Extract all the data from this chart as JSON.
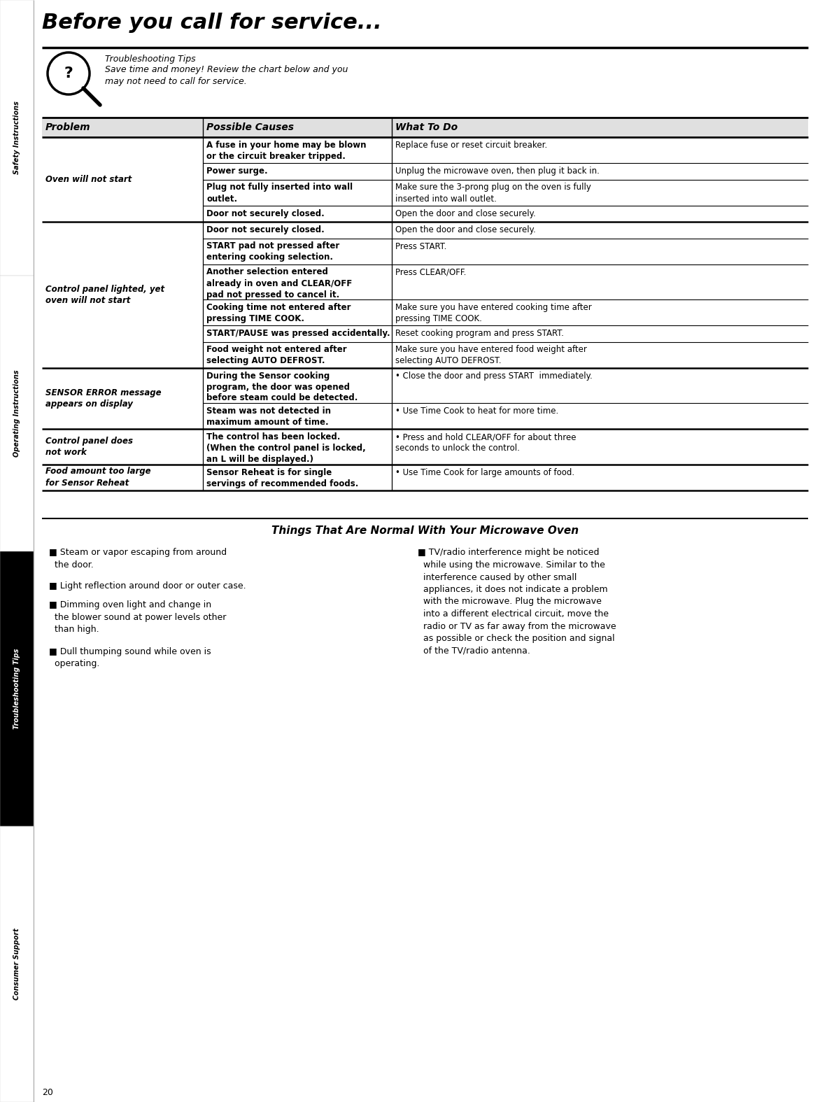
{
  "page_bg": "#ffffff",
  "title": "Before you call for service...",
  "tip_title": "Troubleshooting Tips",
  "tip_body": "Save time and money! Review the chart below and you\nmay not need to call for service.",
  "col_headers": [
    "Problem",
    "Possible Causes",
    "What To Do"
  ],
  "sidebar_labels": [
    "Safety Instructions",
    "Operating Instructions",
    "Troubleshooting Tips",
    "Consumer Support"
  ],
  "sidebar_bgs": [
    "#ffffff",
    "#ffffff",
    "#000000",
    "#ffffff"
  ],
  "sidebar_text_colors": [
    "#000000",
    "#000000",
    "#ffffff",
    "#000000"
  ],
  "page_num": "20",
  "normal_title": "Things That Are Normal With Your Microwave Oven",
  "normal_col1": [
    "■ Steam or vapor escaping from around\n  the door.",
    "■ Light reflection around door or outer case.",
    "■ Dimming oven light and change in\n  the blower sound at power levels other\n  than high.",
    "■ Dull thumping sound while oven is\n  operating."
  ],
  "normal_col2": [
    "■ TV/radio interference might be noticed\n  while using the microwave. Similar to the\n  interference caused by other small\n  appliances, it does not indicate a problem\n  with the microwave. Plug the microwave\n  into a different electrical circuit, move the\n  radio or TV as far away from the microwave\n  as possible or check the position and signal\n  of the TV/radio antenna."
  ],
  "rows": [
    {
      "problem": "Oven will not start",
      "sub": [
        {
          "cause": "A fuse in your home may be blown\nor the circuit breaker tripped.",
          "cause_bold": true,
          "sol": "Replace fuse or reset circuit breaker.",
          "sol_bold": false
        },
        {
          "cause": "Power surge.",
          "cause_bold": true,
          "sol": "Unplug the microwave oven, then plug it back in.",
          "sol_bold": false
        },
        {
          "cause": "Plug not fully inserted into wall\noutlet.",
          "cause_bold": true,
          "sol": "Make sure the 3-prong plug on the oven is fully\ninserted into wall outlet.",
          "sol_bold": false
        },
        {
          "cause": "Door not securely closed.",
          "cause_bold": true,
          "sol": "Open the door and close securely.",
          "sol_bold": false
        }
      ]
    },
    {
      "problem": "Control panel lighted, yet\noven will not start",
      "sub": [
        {
          "cause": "Door not securely closed.",
          "cause_bold": true,
          "sol": "Open the door and close securely.",
          "sol_bold": false
        },
        {
          "cause": "START pad not pressed after\nentering cooking selection.",
          "cause_bold": true,
          "sol": "Press START.",
          "sol_bold": true,
          "sol_text": "Press ⁠START.",
          "sol_parts": [
            [
              "Press ",
              false
            ],
            [
              "START.",
              true
            ]
          ]
        },
        {
          "cause": "Another selection entered\nalready in oven and CLEAR/OFF\npad not pressed to cancel it.",
          "cause_bold": true,
          "sol": "Press CLEAR/OFF.",
          "sol_bold": true,
          "sol_parts": [
            [
              "Press ",
              false
            ],
            [
              "CLEAR/OFF.",
              true
            ]
          ]
        },
        {
          "cause": "Cooking time not entered after\npressing TIME COOK.",
          "cause_bold": true,
          "sol": "Make sure you have entered cooking time after\npressing TIME COOK.",
          "sol_bold": false
        },
        {
          "cause": "START/PAUSE was pressed accidentally.",
          "cause_bold": true,
          "sol": "Reset cooking program and press START.",
          "sol_bold": false
        },
        {
          "cause": "Food weight not entered after\nselecting AUTO DEFROST.",
          "cause_bold": true,
          "sol": "Make sure you have entered food weight after\nselecting AUTO DEFROST.",
          "sol_bold": false
        }
      ]
    },
    {
      "problem": "SENSOR ERROR message\nappears on display",
      "sub": [
        {
          "cause": "During the Sensor cooking\nprogram, the door was opened\nbefore steam could be detected.",
          "cause_bold": true,
          "sol": "• Close the door and press START  immediately.",
          "sol_bold": false
        },
        {
          "cause": "Steam was not detected in\nmaximum amount of time.",
          "cause_bold": true,
          "sol": "• Use Time Cook to heat for more time.",
          "sol_bold": false
        }
      ]
    },
    {
      "problem": "Control panel does\nnot work",
      "sub": [
        {
          "cause": "The control has been locked.\n(When the control panel is locked,\nan L will be displayed.)",
          "cause_bold": true,
          "sol": "• Press and hold CLEAR/OFF for about three\nseconds to unlock the control.",
          "sol_bold": false
        }
      ]
    },
    {
      "problem": "Food amount too large\nfor Sensor Reheat",
      "sub": [
        {
          "cause": "Sensor Reheat is for single\nservings of recommended foods.",
          "cause_bold": true,
          "sol": "• Use Time Cook for large amounts of food.",
          "sol_bold": false
        }
      ]
    }
  ]
}
